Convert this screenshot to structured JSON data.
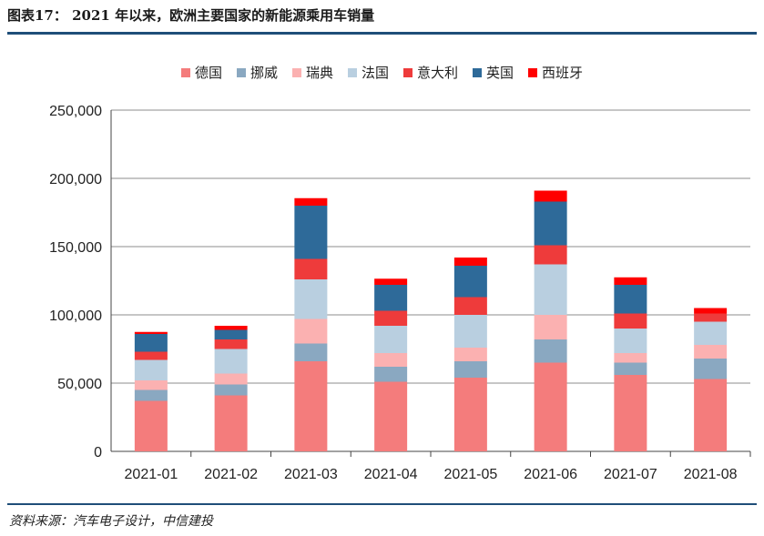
{
  "title": "图表17：  2021 年以来，欧洲主要国家的新能源乘用车销量",
  "source": "资料来源：汽车电子设计，中信建投",
  "chart_data": {
    "type": "bar",
    "stacked": true,
    "categories": [
      "2021-01",
      "2021-02",
      "2021-03",
      "2021-04",
      "2021-05",
      "2021-06",
      "2021-07",
      "2021-08"
    ],
    "ylim": [
      0,
      250000
    ],
    "yticks": [
      0,
      50000,
      100000,
      150000,
      200000,
      250000
    ],
    "ytick_labels": [
      "0",
      "50,000",
      "100,000",
      "150,000",
      "200,000",
      "250,000"
    ],
    "grid": true,
    "legend_position": "top",
    "series": [
      {
        "name": "德国",
        "color": "#f47c7c",
        "values": [
          37000,
          41000,
          66000,
          51000,
          54000,
          65000,
          56000,
          53000
        ]
      },
      {
        "name": "挪威",
        "color": "#8aa8c1",
        "values": [
          8000,
          8000,
          13000,
          11000,
          12000,
          17000,
          9000,
          15000
        ]
      },
      {
        "name": "瑞典",
        "color": "#fbb1b1",
        "values": [
          7000,
          8000,
          18000,
          10000,
          10000,
          18000,
          7000,
          10000
        ]
      },
      {
        "name": "法国",
        "color": "#b9cfe0",
        "values": [
          15000,
          18000,
          29000,
          20000,
          24000,
          37000,
          18000,
          17000
        ]
      },
      {
        "name": "意大利",
        "color": "#ee3b3b",
        "values": [
          6000,
          7000,
          15000,
          11000,
          13000,
          14000,
          11000,
          6000
        ]
      },
      {
        "name": "英国",
        "color": "#2e6a99",
        "values": [
          13000,
          7000,
          39000,
          19000,
          23000,
          32000,
          21000,
          0
        ]
      },
      {
        "name": "西班牙",
        "color": "#ff0000",
        "values": [
          1500,
          3000,
          5500,
          4500,
          6000,
          8000,
          5500,
          4000
        ]
      }
    ]
  }
}
